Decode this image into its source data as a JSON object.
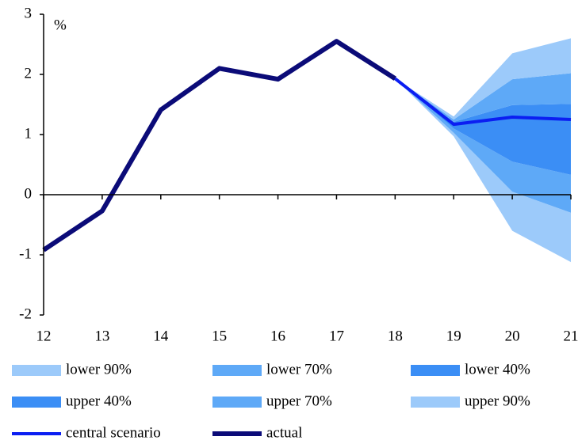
{
  "chart_data": {
    "type": "fan",
    "y_label": "%",
    "x": [
      12,
      13,
      14,
      15,
      16,
      17,
      18,
      19,
      20,
      21
    ],
    "xlim": [
      12,
      21
    ],
    "xticks": [
      12,
      13,
      14,
      15,
      16,
      17,
      18,
      19,
      20,
      21
    ],
    "ylim": [
      -2,
      3
    ],
    "yticks": [
      -2,
      -1,
      0,
      1,
      2,
      3
    ],
    "series": [
      {
        "name": "lower 90%",
        "style": "band",
        "color": "#9ccafa",
        "values": [
          null,
          null,
          null,
          null,
          null,
          null,
          1.93,
          0.97,
          -0.6,
          -1.12
        ]
      },
      {
        "name": "lower 70%",
        "style": "band",
        "color": "#5ea9f7",
        "values": [
          null,
          null,
          null,
          null,
          null,
          null,
          1.93,
          1.03,
          0.05,
          -0.3
        ]
      },
      {
        "name": "lower 40%",
        "style": "band",
        "color": "#3b8ef5",
        "values": [
          null,
          null,
          null,
          null,
          null,
          null,
          1.93,
          1.1,
          0.55,
          0.33
        ]
      },
      {
        "name": "upper 40%",
        "style": "band",
        "color": "#3b8ef5",
        "values": [
          null,
          null,
          null,
          null,
          null,
          null,
          1.93,
          1.21,
          1.49,
          1.51
        ]
      },
      {
        "name": "upper 70%",
        "style": "band",
        "color": "#5ea9f7",
        "values": [
          null,
          null,
          null,
          null,
          null,
          null,
          1.93,
          1.25,
          1.92,
          2.02
        ]
      },
      {
        "name": "upper 90%",
        "style": "band",
        "color": "#9ccafa",
        "values": [
          null,
          null,
          null,
          null,
          null,
          null,
          1.93,
          1.3,
          2.35,
          2.6
        ]
      },
      {
        "name": "central scenario",
        "style": "line",
        "color": "#0b1ef2",
        "values": [
          null,
          null,
          null,
          null,
          null,
          null,
          1.93,
          1.17,
          1.29,
          1.25
        ]
      },
      {
        "name": "actual",
        "style": "line",
        "color": "#0b0b78",
        "values": [
          -0.92,
          -0.27,
          1.41,
          2.1,
          1.92,
          2.55,
          1.93,
          null,
          null,
          null
        ]
      }
    ]
  }
}
